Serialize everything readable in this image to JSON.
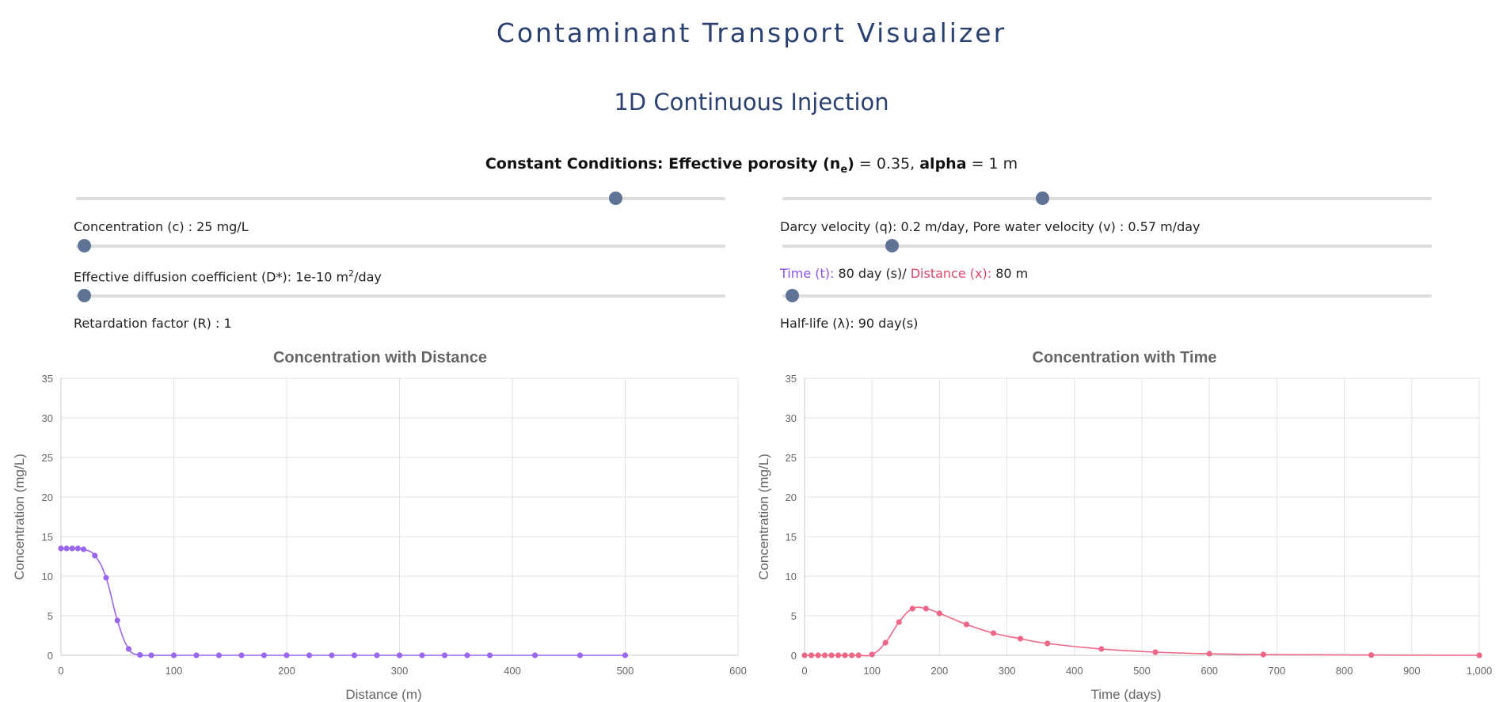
{
  "app_title": "Contaminant Transport Visualizer",
  "subtitle": "1D Continuous Injection",
  "constants": {
    "prefix": "Constant Conditions: Effective porosity (n",
    "porosity_sub": "e",
    "porosity_close": ")",
    "porosity_value": " = 0.35, ",
    "alpha_label": "alpha",
    "alpha_value": " = 1 m"
  },
  "params": {
    "concentration": {
      "label": "Concentration (c) : 25 mg/L",
      "slider_fraction": 0.83
    },
    "diffusion": {
      "label_prefix": "Effective diffusion coefficient (D*): 1e-10 m",
      "label_sup": "2",
      "label_suffix": "/day",
      "slider_fraction": 0.012
    },
    "retardation": {
      "label": "Retardation factor (R) : 1",
      "slider_fraction": 0.012
    },
    "velocity": {
      "label": "Darcy velocity (q): 0.2 m/day, Pore water velocity (v) : 0.57 m/day",
      "slider_fraction": 0.4
    },
    "time_distance": {
      "time_label": "Time (t):",
      "time_value": " 80 day (s)/ ",
      "distance_label": "Distance (x):",
      "distance_value": " 80 m",
      "slider_fraction": 0.168
    },
    "half_life": {
      "label": "Half-life (λ): 90 day(s)",
      "slider_fraction": 0.015
    }
  },
  "chart_data": [
    {
      "type": "line",
      "title": "Concentration with Distance",
      "xlabel": "Distance (m)",
      "ylabel": "Concentration (mg/L)",
      "xlim": [
        0,
        600
      ],
      "ylim": [
        0,
        35
      ],
      "xticks": [
        0,
        100,
        200,
        300,
        400,
        500,
        600
      ],
      "yticks": [
        0,
        5,
        10,
        15,
        20,
        25,
        30,
        35
      ],
      "color": "#9966ee",
      "x": [
        0,
        5,
        10,
        15,
        20,
        30,
        40,
        50,
        60,
        70,
        80,
        100,
        120,
        140,
        160,
        180,
        200,
        220,
        240,
        260,
        280,
        300,
        320,
        340,
        360,
        380,
        420,
        460,
        500
      ],
      "y": [
        13.5,
        13.5,
        13.5,
        13.5,
        13.4,
        12.6,
        9.8,
        4.4,
        0.8,
        0.05,
        0,
        0,
        0,
        0,
        0,
        0,
        0,
        0,
        0,
        0,
        0,
        0,
        0,
        0,
        0,
        0,
        0,
        0,
        0
      ]
    },
    {
      "type": "line",
      "title": "Concentration with Time",
      "xlabel": "Time (days)",
      "ylabel": "Concentration (mg/L)",
      "xlim": [
        0,
        1000
      ],
      "ylim": [
        0,
        35
      ],
      "xticks": [
        0,
        100,
        200,
        300,
        400,
        500,
        600,
        700,
        800,
        900,
        1000
      ],
      "xtick_labels": [
        "0",
        "100",
        "200",
        "300",
        "400",
        "500",
        "600",
        "700",
        "800",
        "900",
        "1,000"
      ],
      "yticks": [
        0,
        5,
        10,
        15,
        20,
        25,
        30,
        35
      ],
      "color": "#ee6688",
      "x": [
        0,
        10,
        20,
        30,
        40,
        50,
        60,
        70,
        80,
        100,
        120,
        140,
        160,
        180,
        200,
        240,
        280,
        320,
        360,
        440,
        520,
        600,
        680,
        840,
        1000
      ],
      "y": [
        0,
        0,
        0,
        0,
        0,
        0,
        0,
        0,
        0,
        0.1,
        1.6,
        4.2,
        5.9,
        5.9,
        5.3,
        3.9,
        2.8,
        2.1,
        1.5,
        0.8,
        0.4,
        0.2,
        0.1,
        0.03,
        0
      ]
    }
  ]
}
